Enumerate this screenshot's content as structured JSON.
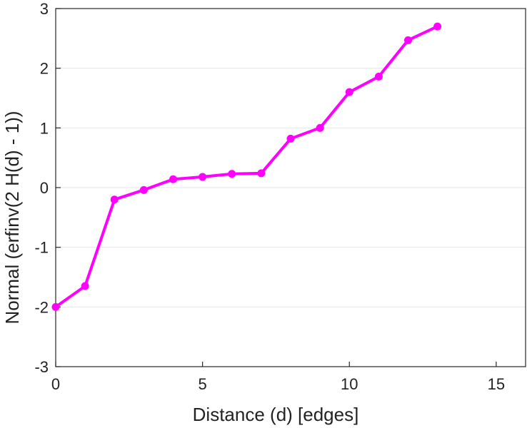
{
  "chart_data": {
    "type": "line",
    "title": "",
    "xlabel": "Distance (d) [edges]",
    "ylabel": "Normal (erfinv(2 H(d) - 1))",
    "xlim": [
      0,
      16
    ],
    "ylim": [
      -3,
      3
    ],
    "xticks": [
      0,
      5,
      10,
      15
    ],
    "yticks": [
      -3,
      -2,
      -1,
      0,
      1,
      2,
      3
    ],
    "xtick_labels": [
      "0",
      "5",
      "10",
      "15"
    ],
    "ytick_labels": [
      "-3",
      "-2",
      "-1",
      "0",
      "1",
      "2",
      "3"
    ],
    "grid": "horizontal",
    "legend": "none",
    "series": [
      {
        "color": "#ff00ff",
        "marker": "circle",
        "x": [
          0,
          1,
          2,
          3,
          4,
          5,
          6,
          7,
          8,
          9,
          10,
          11,
          12,
          13
        ],
        "y": [
          -2.0,
          -1.65,
          -0.2,
          -0.04,
          0.14,
          0.18,
          0.23,
          0.24,
          0.82,
          1.0,
          1.6,
          1.86,
          2.47,
          2.7
        ]
      }
    ]
  }
}
